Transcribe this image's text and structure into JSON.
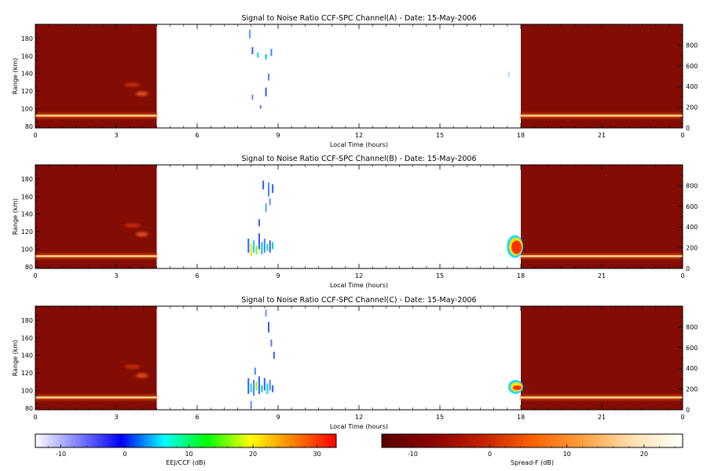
{
  "chart_data": [
    {
      "type": "heatmap",
      "title": "Signal to Noise Ratio CCF-SPC Channel(A) - Date: 15-May-2006",
      "xlabel": "Local Time (hours)",
      "ylabel": "Range (km)",
      "xlim": [
        0,
        24
      ],
      "ylim": [
        78,
        196
      ],
      "x_ticks": [
        "0",
        "3",
        "6",
        "9",
        "12",
        "15",
        "18",
        "21",
        "0"
      ],
      "y_ticks": [
        "80",
        "100",
        "120",
        "140",
        "160",
        "180"
      ],
      "y2_ticks": [
        "0",
        "200",
        "400",
        "600",
        "800"
      ],
      "nighttime_spans": [
        [
          0,
          4.5
        ],
        [
          18,
          24
        ]
      ],
      "layer_range_km": 92,
      "ejet_echoes": [
        {
          "t": 7.95,
          "r1": 180,
          "r2": 190,
          "c": "#4fa3ff"
        },
        {
          "t": 8.05,
          "r1": 162,
          "r2": 170,
          "c": "#2f5fff"
        },
        {
          "t": 8.25,
          "r1": 158,
          "r2": 164,
          "c": "#00e0e0"
        },
        {
          "t": 8.55,
          "r1": 156,
          "r2": 162,
          "c": "#00c8c8"
        },
        {
          "t": 8.75,
          "r1": 160,
          "r2": 168,
          "c": "#3a8cff"
        },
        {
          "t": 8.65,
          "r1": 132,
          "r2": 140,
          "c": "#5a7dff"
        },
        {
          "t": 8.55,
          "r1": 114,
          "r2": 124,
          "c": "#2f5fff"
        },
        {
          "t": 8.05,
          "r1": 110,
          "r2": 116,
          "c": "#6a8cff"
        },
        {
          "t": 8.35,
          "r1": 100,
          "r2": 104,
          "c": "#4f7aff"
        },
        {
          "t": 17.55,
          "r1": 136,
          "r2": 142,
          "c": "#b0d8ff"
        }
      ],
      "spread_f_echoes": []
    },
    {
      "type": "heatmap",
      "title": "Signal to Noise Ratio CCF-SPC Channel(B) - Date: 15-May-2006",
      "xlabel": "Local Time (hours)",
      "ylabel": "Range (km)",
      "xlim": [
        0,
        24
      ],
      "ylim": [
        78,
        196
      ],
      "x_ticks": [
        "0",
        "3",
        "6",
        "9",
        "12",
        "15",
        "18",
        "21",
        "0"
      ],
      "y_ticks": [
        "80",
        "100",
        "120",
        "140",
        "160",
        "180"
      ],
      "y2_ticks": [
        "0",
        "200",
        "400",
        "600",
        "800"
      ],
      "nighttime_spans": [
        [
          0,
          4.5
        ],
        [
          18,
          24
        ]
      ],
      "layer_range_km": 92,
      "ejet_echoes": [
        {
          "t": 7.9,
          "r1": 96,
          "r2": 112,
          "c": "#2f5fff"
        },
        {
          "t": 8.0,
          "r1": 92,
          "r2": 106,
          "c": "#ffd700"
        },
        {
          "t": 8.1,
          "r1": 96,
          "r2": 110,
          "c": "#00e0e0"
        },
        {
          "t": 8.2,
          "r1": 94,
          "r2": 104,
          "c": "#7fff00"
        },
        {
          "t": 8.3,
          "r1": 100,
          "r2": 118,
          "c": "#2f5fff"
        },
        {
          "t": 8.4,
          "r1": 94,
          "r2": 108,
          "c": "#00c8c8"
        },
        {
          "t": 8.5,
          "r1": 96,
          "r2": 112,
          "c": "#4f7aff"
        },
        {
          "t": 8.6,
          "r1": 98,
          "r2": 106,
          "c": "#00e0e0"
        },
        {
          "t": 8.7,
          "r1": 96,
          "r2": 110,
          "c": "#2f5fff"
        },
        {
          "t": 8.8,
          "r1": 100,
          "r2": 108,
          "c": "#00c8c8"
        },
        {
          "t": 8.45,
          "r1": 168,
          "r2": 178,
          "c": "#2f5fff"
        },
        {
          "t": 8.65,
          "r1": 160,
          "r2": 176,
          "c": "#3a8cff"
        },
        {
          "t": 8.8,
          "r1": 164,
          "r2": 174,
          "c": "#2f5fff"
        },
        {
          "t": 8.55,
          "r1": 142,
          "r2": 152,
          "c": "#4fa3ff"
        },
        {
          "t": 8.3,
          "r1": 126,
          "r2": 134,
          "c": "#2f5fff"
        },
        {
          "t": 8.7,
          "r1": 150,
          "r2": 158,
          "c": "#6a8cff"
        }
      ],
      "spread_f_echoes": [
        {
          "t1": 17.45,
          "t2": 18.0,
          "r1": 90,
          "r2": 116
        }
      ]
    },
    {
      "type": "heatmap",
      "title": "Signal to Noise Ratio CCF-SPC Channel(C) - Date: 15-May-2006",
      "xlabel": "Local Time (hours)",
      "ylabel": "Range (km)",
      "xlim": [
        0,
        24
      ],
      "ylim": [
        78,
        196
      ],
      "x_ticks": [
        "0",
        "3",
        "6",
        "9",
        "12",
        "15",
        "18",
        "21",
        "0"
      ],
      "y_ticks": [
        "80",
        "100",
        "120",
        "140",
        "160",
        "180"
      ],
      "y2_ticks": [
        "0",
        "200",
        "400",
        "600",
        "800"
      ],
      "nighttime_spans": [
        [
          0,
          4.5
        ],
        [
          18,
          24
        ]
      ],
      "layer_range_km": 92,
      "ejet_echoes": [
        {
          "t": 7.9,
          "r1": 96,
          "r2": 114,
          "c": "#2f5fff"
        },
        {
          "t": 8.0,
          "r1": 98,
          "r2": 108,
          "c": "#00e0e0"
        },
        {
          "t": 8.1,
          "r1": 94,
          "r2": 112,
          "c": "#4f7aff"
        },
        {
          "t": 8.2,
          "r1": 100,
          "r2": 110,
          "c": "#7fff00"
        },
        {
          "t": 8.3,
          "r1": 96,
          "r2": 116,
          "c": "#2f5fff"
        },
        {
          "t": 8.4,
          "r1": 98,
          "r2": 106,
          "c": "#00c8c8"
        },
        {
          "t": 8.5,
          "r1": 100,
          "r2": 114,
          "c": "#2f5fff"
        },
        {
          "t": 8.6,
          "r1": 96,
          "r2": 108,
          "c": "#00e0e0"
        },
        {
          "t": 8.7,
          "r1": 100,
          "r2": 112,
          "c": "#4f7aff"
        },
        {
          "t": 8.8,
          "r1": 98,
          "r2": 106,
          "c": "#2f5fff"
        },
        {
          "t": 8.55,
          "r1": 184,
          "r2": 192,
          "c": "#6a8cff"
        },
        {
          "t": 8.65,
          "r1": 166,
          "r2": 178,
          "c": "#2f5fff"
        },
        {
          "t": 8.75,
          "r1": 150,
          "r2": 158,
          "c": "#4f7aff"
        },
        {
          "t": 8.85,
          "r1": 136,
          "r2": 144,
          "c": "#2f5fff"
        },
        {
          "t": 8.15,
          "r1": 118,
          "r2": 126,
          "c": "#3a8cff"
        },
        {
          "t": 8.0,
          "r1": 80,
          "r2": 88,
          "c": "#6a8cff"
        }
      ],
      "spread_f_echoes": [
        {
          "t1": 17.5,
          "t2": 18.0,
          "r1": 96,
          "r2": 112
        }
      ]
    }
  ],
  "colorbars": [
    {
      "label": "EEJ/CCF (dB)",
      "ticks": [
        "-10",
        "0",
        "10",
        "20",
        "30"
      ],
      "range": [
        -14,
        33
      ],
      "stops": [
        "#ffffff",
        "#8080ff",
        "#0000ff",
        "#00ffff",
        "#00ff00",
        "#ffff00",
        "#ff8000",
        "#ff0000"
      ]
    },
    {
      "label": "Spread-F (dB)",
      "ticks": [
        "-10",
        "0",
        "10",
        "20"
      ],
      "range": [
        -14,
        25
      ],
      "stops": [
        "#5a0000",
        "#8b0000",
        "#c02000",
        "#ff6000",
        "#ffa040",
        "#ffe0b0",
        "#ffffff"
      ]
    }
  ],
  "colors": {
    "night_background": "#830c05",
    "layer": "#ffc070",
    "layer_core": "#fff0c0"
  }
}
